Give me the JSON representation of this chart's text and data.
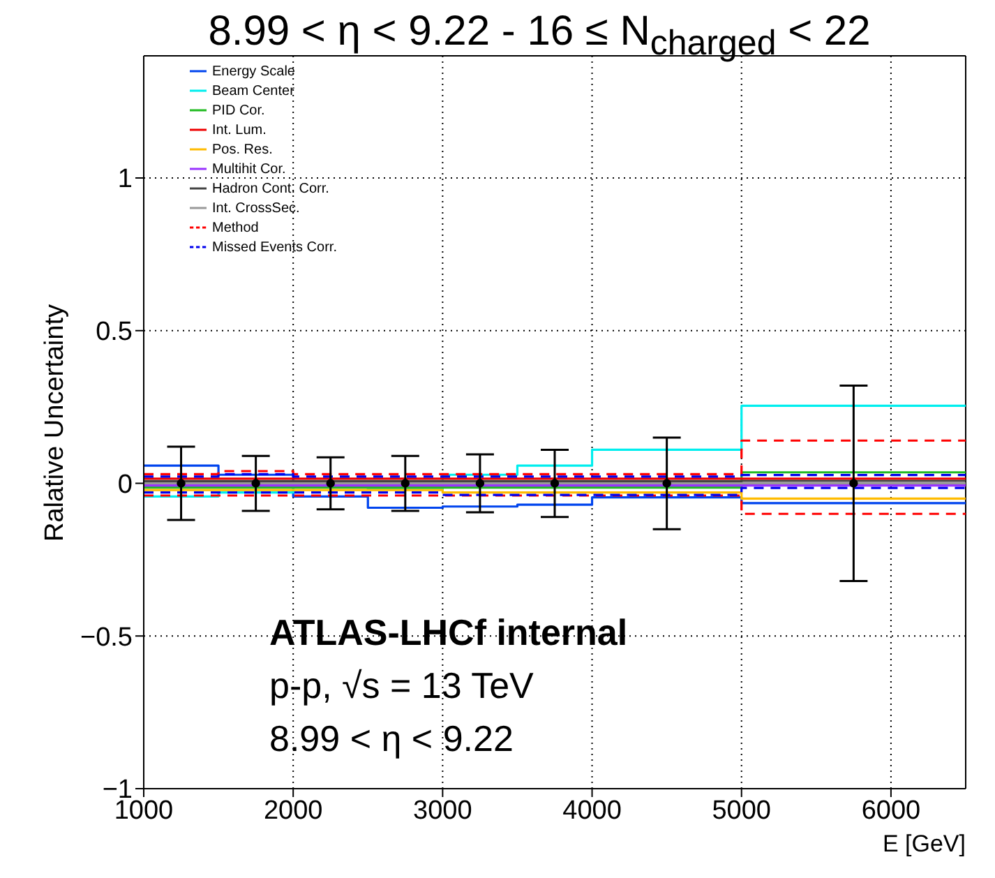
{
  "chart_data": {
    "type": "histogram",
    "title": "8.99 < η < 9.22 - 16 ≤ N$_{charged}$ < 22",
    "xlabel": "E [GeV]",
    "ylabel": "Ralative Uncertainty",
    "bins": [
      1000,
      1500,
      2000,
      2500,
      3000,
      3500,
      4000,
      5000,
      6500
    ],
    "series": [
      {
        "name": "Energy Scale",
        "color": "#0044ee",
        "line_style": "solid",
        "values": [
          0.058,
          0.028,
          -0.043,
          -0.08,
          -0.076,
          -0.07,
          -0.046,
          -0.065
        ]
      },
      {
        "name": "Beam Center",
        "color": "#00eeee",
        "line_style": "solid",
        "values": [
          -0.043,
          -0.03,
          -0.013,
          -0.02,
          0.028,
          0.058,
          0.11,
          0.254
        ]
      },
      {
        "name": "PID Cor.",
        "color": "#22bb22",
        "line_style": "solid",
        "values": [
          -0.014,
          -0.014,
          -0.014,
          -0.014,
          -0.014,
          -0.014,
          -0.014,
          0.036
        ]
      },
      {
        "name": "Int. Lum.",
        "color": "#ee0000",
        "line_style": "solid",
        "values": [
          0.015,
          0.015,
          0.015,
          0.015,
          0.015,
          0.015,
          0.015,
          0.015
        ]
      },
      {
        "name": "Pos. Res.",
        "color": "#ffbb00",
        "line_style": "solid",
        "values": [
          -0.022,
          -0.022,
          -0.022,
          -0.022,
          -0.03,
          -0.03,
          -0.03,
          -0.05
        ]
      },
      {
        "name": "Multihit Cor.",
        "color": "#9933ff",
        "line_style": "solid",
        "values": [
          -0.007,
          -0.007,
          -0.007,
          -0.007,
          -0.007,
          -0.007,
          -0.007,
          -0.007
        ]
      },
      {
        "name": "Hadron Cont. Corr.",
        "color": "#444444",
        "line_style": "solid",
        "values": [
          0.007,
          0.007,
          0.007,
          0.007,
          0.007,
          0.007,
          0.007,
          0.008
        ]
      },
      {
        "name": "Int. CrossSec.",
        "color": "#999999",
        "line_style": "solid",
        "values": [
          0,
          0,
          0,
          0,
          0,
          0,
          0,
          0
        ]
      },
      {
        "name": "Method",
        "color": "#ff0000",
        "line_style": "dashed",
        "values": [
          0.03,
          0.04,
          0.03,
          0.03,
          0.03,
          0.03,
          0.03,
          0.14
        ]
      },
      {
        "name": "Missed Events Corr.",
        "color": "#0000ee",
        "line_style": "dashed",
        "values": [
          0.022,
          0.03,
          0.022,
          0.022,
          0.022,
          0.022,
          0.022,
          0.027
        ]
      },
      {
        "color": "#ff0000",
        "line_style": "dashed",
        "values": [
          -0.04,
          -0.04,
          -0.04,
          -0.04,
          -0.04,
          -0.04,
          -0.04,
          -0.1
        ]
      },
      {
        "color": "#0000ee",
        "line_style": "dashed",
        "values": [
          -0.03,
          -0.03,
          -0.03,
          -0.03,
          -0.038,
          -0.038,
          -0.038,
          -0.015
        ]
      },
      {
        "type": "scatter",
        "color": "#000000",
        "marker": "circle",
        "x": [
          1250,
          1750,
          2250,
          2750,
          3250,
          3750,
          4500,
          5750
        ],
        "values": [
          0,
          0,
          0,
          0,
          0,
          0,
          0,
          0
        ],
        "errors": [
          0.12,
          0.09,
          0.085,
          0.09,
          0.095,
          0.11,
          0.15,
          0.32
        ]
      }
    ],
    "xlim": [
      1000,
      6500
    ],
    "xticks": [
      1000,
      2000,
      3000,
      4000,
      5000,
      6000
    ],
    "ylim": [
      -1,
      1.4
    ],
    "yticks": [
      {
        "value": -1,
        "label": "−1"
      },
      {
        "value": -0.5,
        "label": "−0.5"
      },
      0,
      0.5,
      1
    ],
    "grid": true,
    "legend": "top",
    "annotations": [
      "ATLAS-LHCf internal",
      "p-p, √s = 13 TeV",
      "8.99 < η < 9.22"
    ]
  }
}
